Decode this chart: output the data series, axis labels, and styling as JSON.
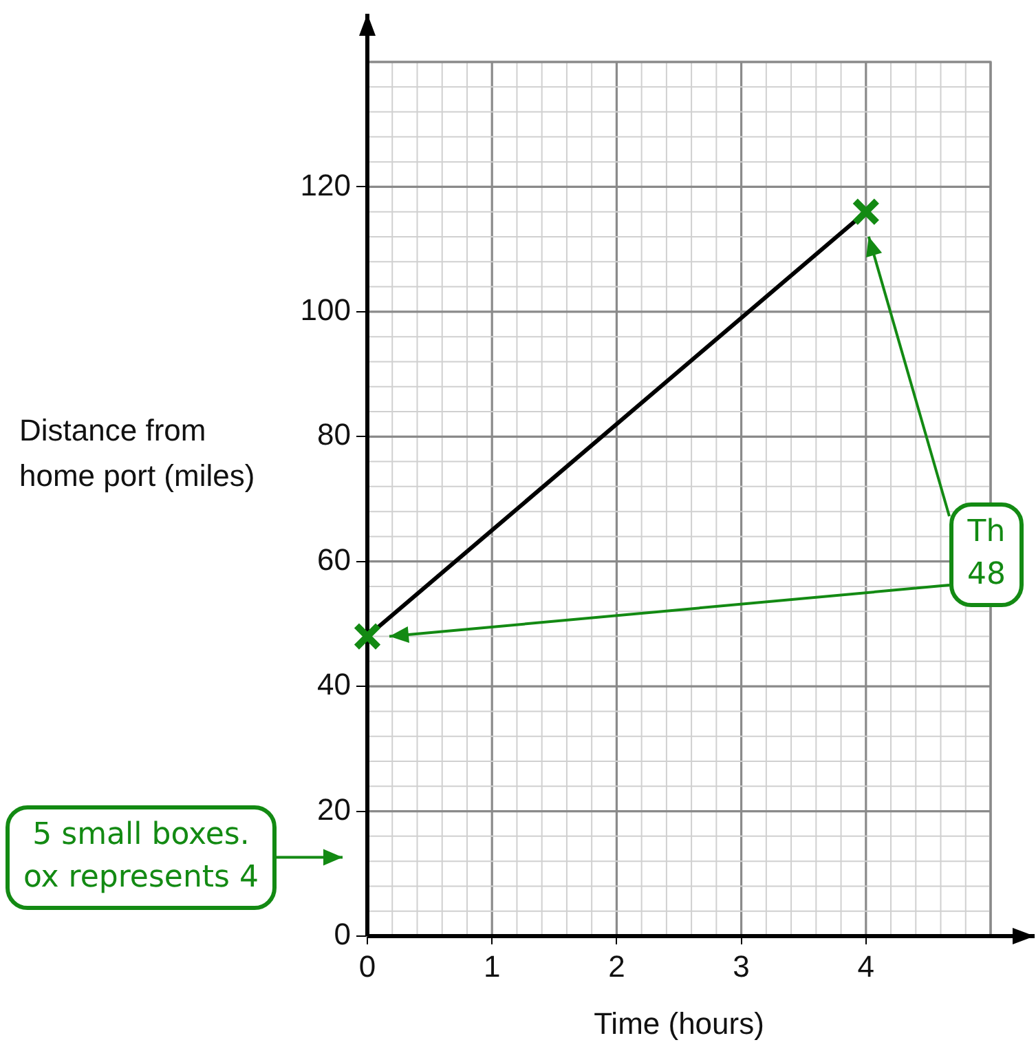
{
  "chart_data": {
    "type": "line",
    "xlabel": "Time (hours)",
    "ylabel": "Distance from home port (miles)",
    "xlim": [
      0,
      5
    ],
    "xticks": [
      0,
      1,
      2,
      3,
      4
    ],
    "ylim": [
      0,
      140
    ],
    "yticks": [
      0,
      20,
      40,
      60,
      80,
      100,
      120
    ],
    "grid": true,
    "x": [
      0,
      4
    ],
    "series": [
      {
        "type": "line",
        "color": "#000000",
        "values": [
          48,
          116
        ],
        "marker": "none"
      },
      {
        "type": "scatter",
        "color": "#138a13",
        "values": [
          48,
          116
        ],
        "marker": "cross"
      }
    ],
    "annotations": [
      "5 small boxes.\nox represents 4",
      "Th\n48"
    ]
  }
}
